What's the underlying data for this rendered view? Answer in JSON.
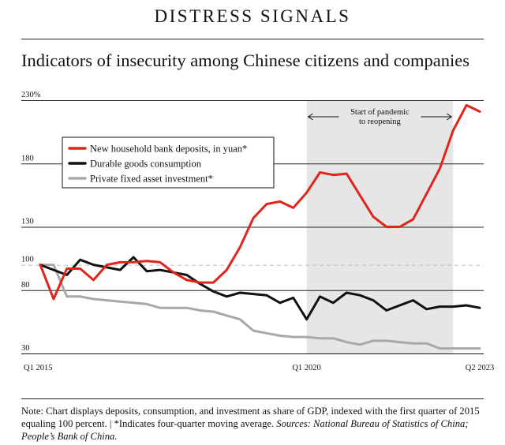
{
  "kicker": "DISTRESS SIGNALS",
  "title": "Indicators of insecurity among Chinese citizens and companies",
  "note": {
    "text": "Note: Chart displays deposits, consumption, and investment as share of GDP, indexed with the first quarter of 2015 equaling 100 percent. | *Indicates four-quarter moving average. ",
    "sources": "Sources: National Bureau of Statistics of China; People’s Bank of China."
  },
  "chart_data": {
    "type": "line",
    "title": "Indicators of insecurity among Chinese citizens and companies",
    "x": [
      "Q1 2015",
      "Q2 2015",
      "Q3 2015",
      "Q4 2015",
      "Q1 2016",
      "Q2 2016",
      "Q3 2016",
      "Q4 2016",
      "Q1 2017",
      "Q2 2017",
      "Q3 2017",
      "Q4 2017",
      "Q1 2018",
      "Q2 2018",
      "Q3 2018",
      "Q4 2018",
      "Q1 2019",
      "Q2 2019",
      "Q3 2019",
      "Q4 2019",
      "Q1 2020",
      "Q2 2020",
      "Q3 2020",
      "Q4 2020",
      "Q1 2021",
      "Q2 2021",
      "Q3 2021",
      "Q4 2021",
      "Q1 2022",
      "Q2 2022",
      "Q3 2022",
      "Q4 2022",
      "Q1 2023",
      "Q2 2023"
    ],
    "x_tick_labels": [
      "Q1 2015",
      "Q1 2020",
      "Q2 2023"
    ],
    "y_ticks": [
      30,
      80,
      100,
      130,
      180,
      230
    ],
    "y_tick_labels": [
      "30",
      "80",
      "100",
      "130",
      "180",
      "230%"
    ],
    "ylim": [
      30,
      230
    ],
    "reference_line": 100,
    "shaded_period": {
      "start": "Q1 2020",
      "end": "Q4 2022",
      "label": [
        "Start of pandemic",
        "to reopening"
      ]
    },
    "legend_position": "top-left",
    "series": [
      {
        "name": "New household bank deposits, in yuan*",
        "color": "#e0251b",
        "values": [
          100,
          73,
          97,
          97,
          88,
          100,
          102,
          102,
          103,
          102,
          94,
          88,
          86,
          86,
          96,
          114,
          137,
          148,
          150,
          145,
          157,
          173,
          171,
          172,
          155,
          138,
          130,
          130,
          136,
          156,
          176,
          206,
          226,
          221
        ]
      },
      {
        "name": "Durable goods consumption",
        "color": "#111111",
        "values": [
          100,
          96,
          92,
          104,
          100,
          98,
          96,
          106,
          95,
          96,
          94,
          92,
          85,
          79,
          75,
          78,
          77,
          76,
          70,
          74,
          57,
          75,
          70,
          78,
          76,
          72,
          64,
          68,
          72,
          65,
          67,
          67,
          68,
          66
        ]
      },
      {
        "name": "Private fixed asset investment*",
        "color": "#a8a8a8",
        "values": [
          100,
          100,
          75,
          75,
          73,
          72,
          71,
          70,
          69,
          66,
          66,
          66,
          64,
          63,
          60,
          57,
          48,
          46,
          44,
          43,
          43,
          42,
          42,
          39,
          37,
          40,
          40,
          39,
          38,
          38,
          34,
          34,
          34,
          34
        ]
      }
    ]
  }
}
